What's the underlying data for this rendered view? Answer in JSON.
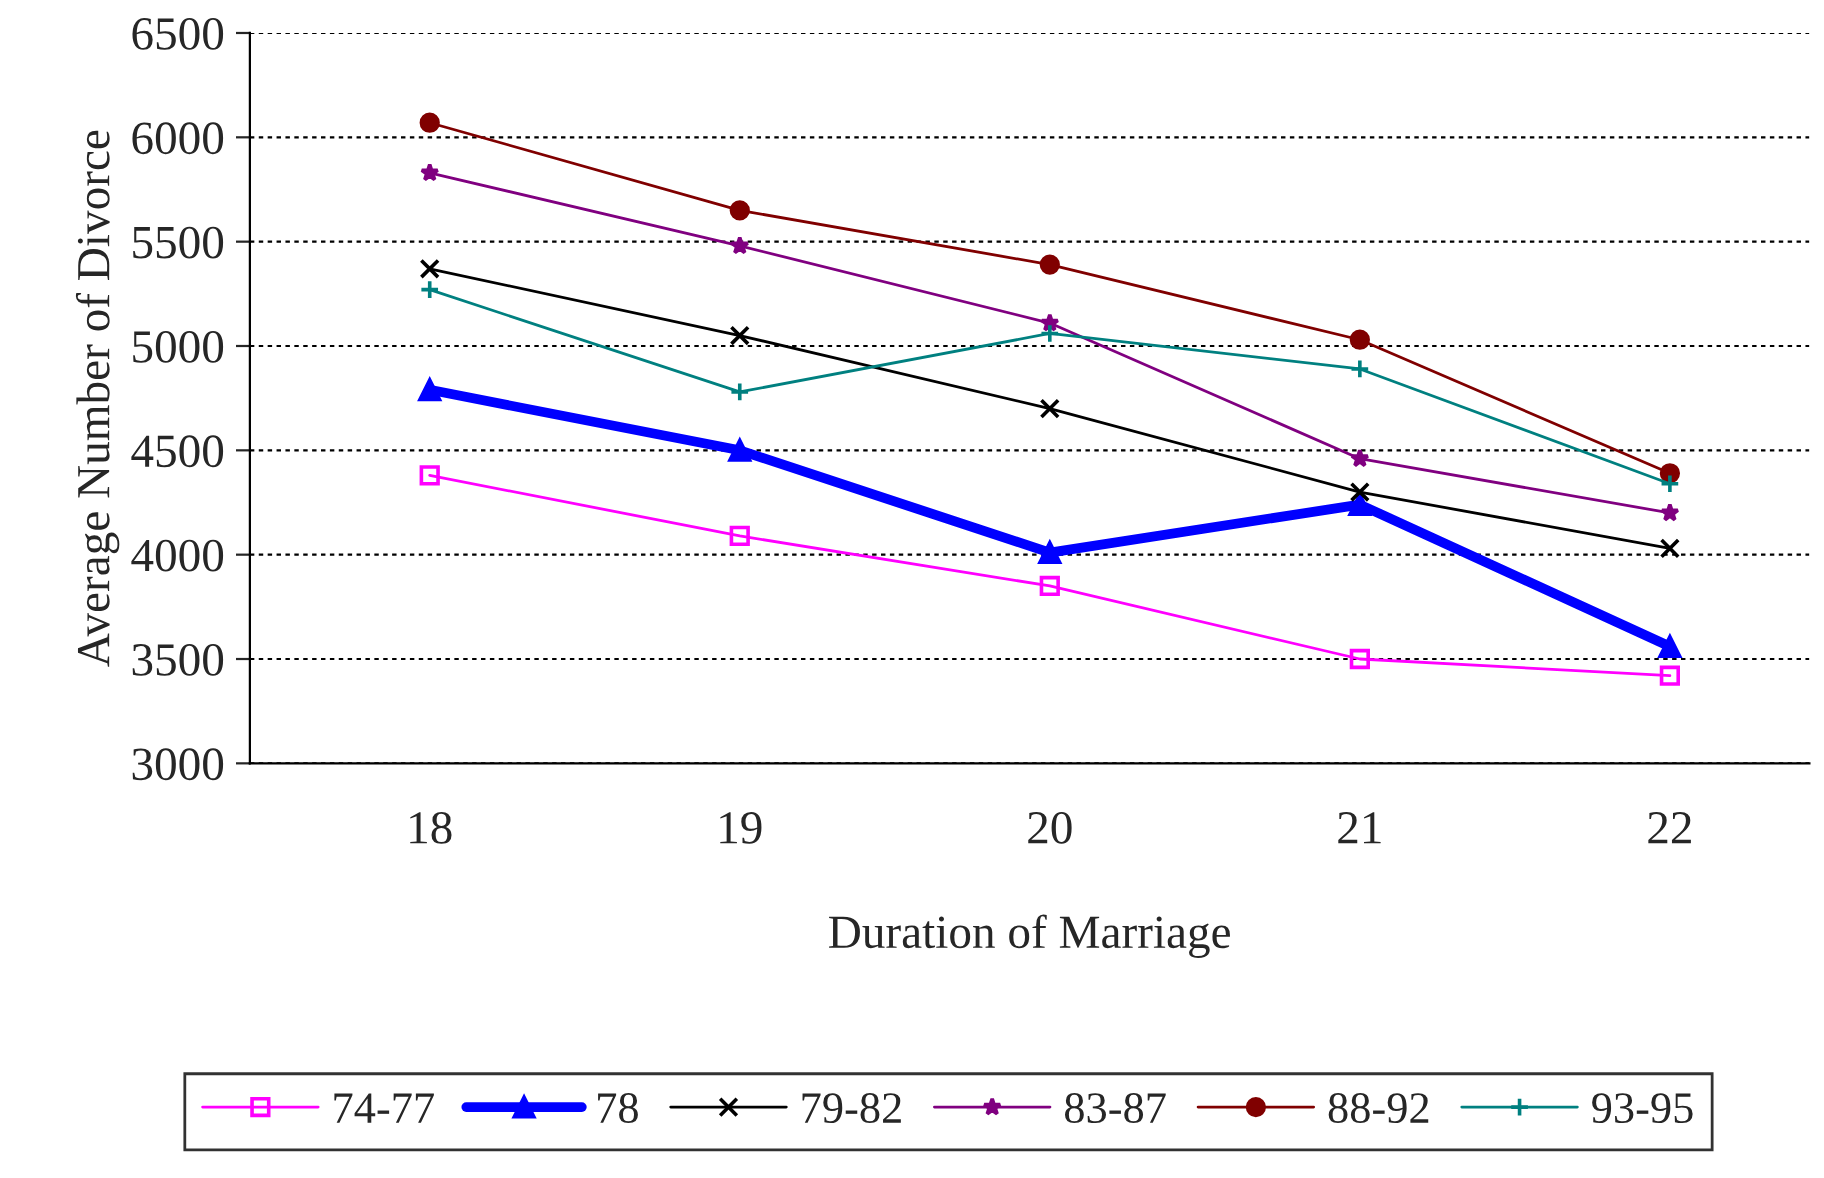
{
  "chart_data": {
    "type": "line",
    "xlabel": "Duration of Marriage",
    "ylabel": "Average Number of Divorce",
    "categories": [
      "18",
      "19",
      "20",
      "21",
      "22"
    ],
    "series": [
      {
        "name": "74-77",
        "color": "#ff00ff",
        "marker": "square",
        "values": [
          4380,
          4090,
          3850,
          3500,
          3420
        ]
      },
      {
        "name": "78",
        "color": "#0000ff",
        "marker": "triangle",
        "values": [
          4790,
          4500,
          4010,
          4240,
          3560
        ]
      },
      {
        "name": "79-82",
        "color": "#000000",
        "marker": "cross",
        "values": [
          5370,
          5050,
          4700,
          4300,
          4030
        ]
      },
      {
        "name": "83-87",
        "color": "#800080",
        "marker": "star",
        "values": [
          5830,
          5480,
          5110,
          4460,
          4200
        ]
      },
      {
        "name": "88-92",
        "color": "#800000",
        "marker": "circle",
        "values": [
          6070,
          5650,
          5390,
          5030,
          4390
        ]
      },
      {
        "name": "93-95",
        "color": "#008080",
        "marker": "plus",
        "values": [
          5270,
          4780,
          5060,
          4890,
          4340
        ]
      }
    ],
    "ylim": [
      3000,
      6500
    ],
    "yticks": [
      3000,
      3500,
      4000,
      4500,
      5000,
      5500,
      6000,
      6500
    ],
    "grid": "y",
    "legend": "bottom"
  }
}
